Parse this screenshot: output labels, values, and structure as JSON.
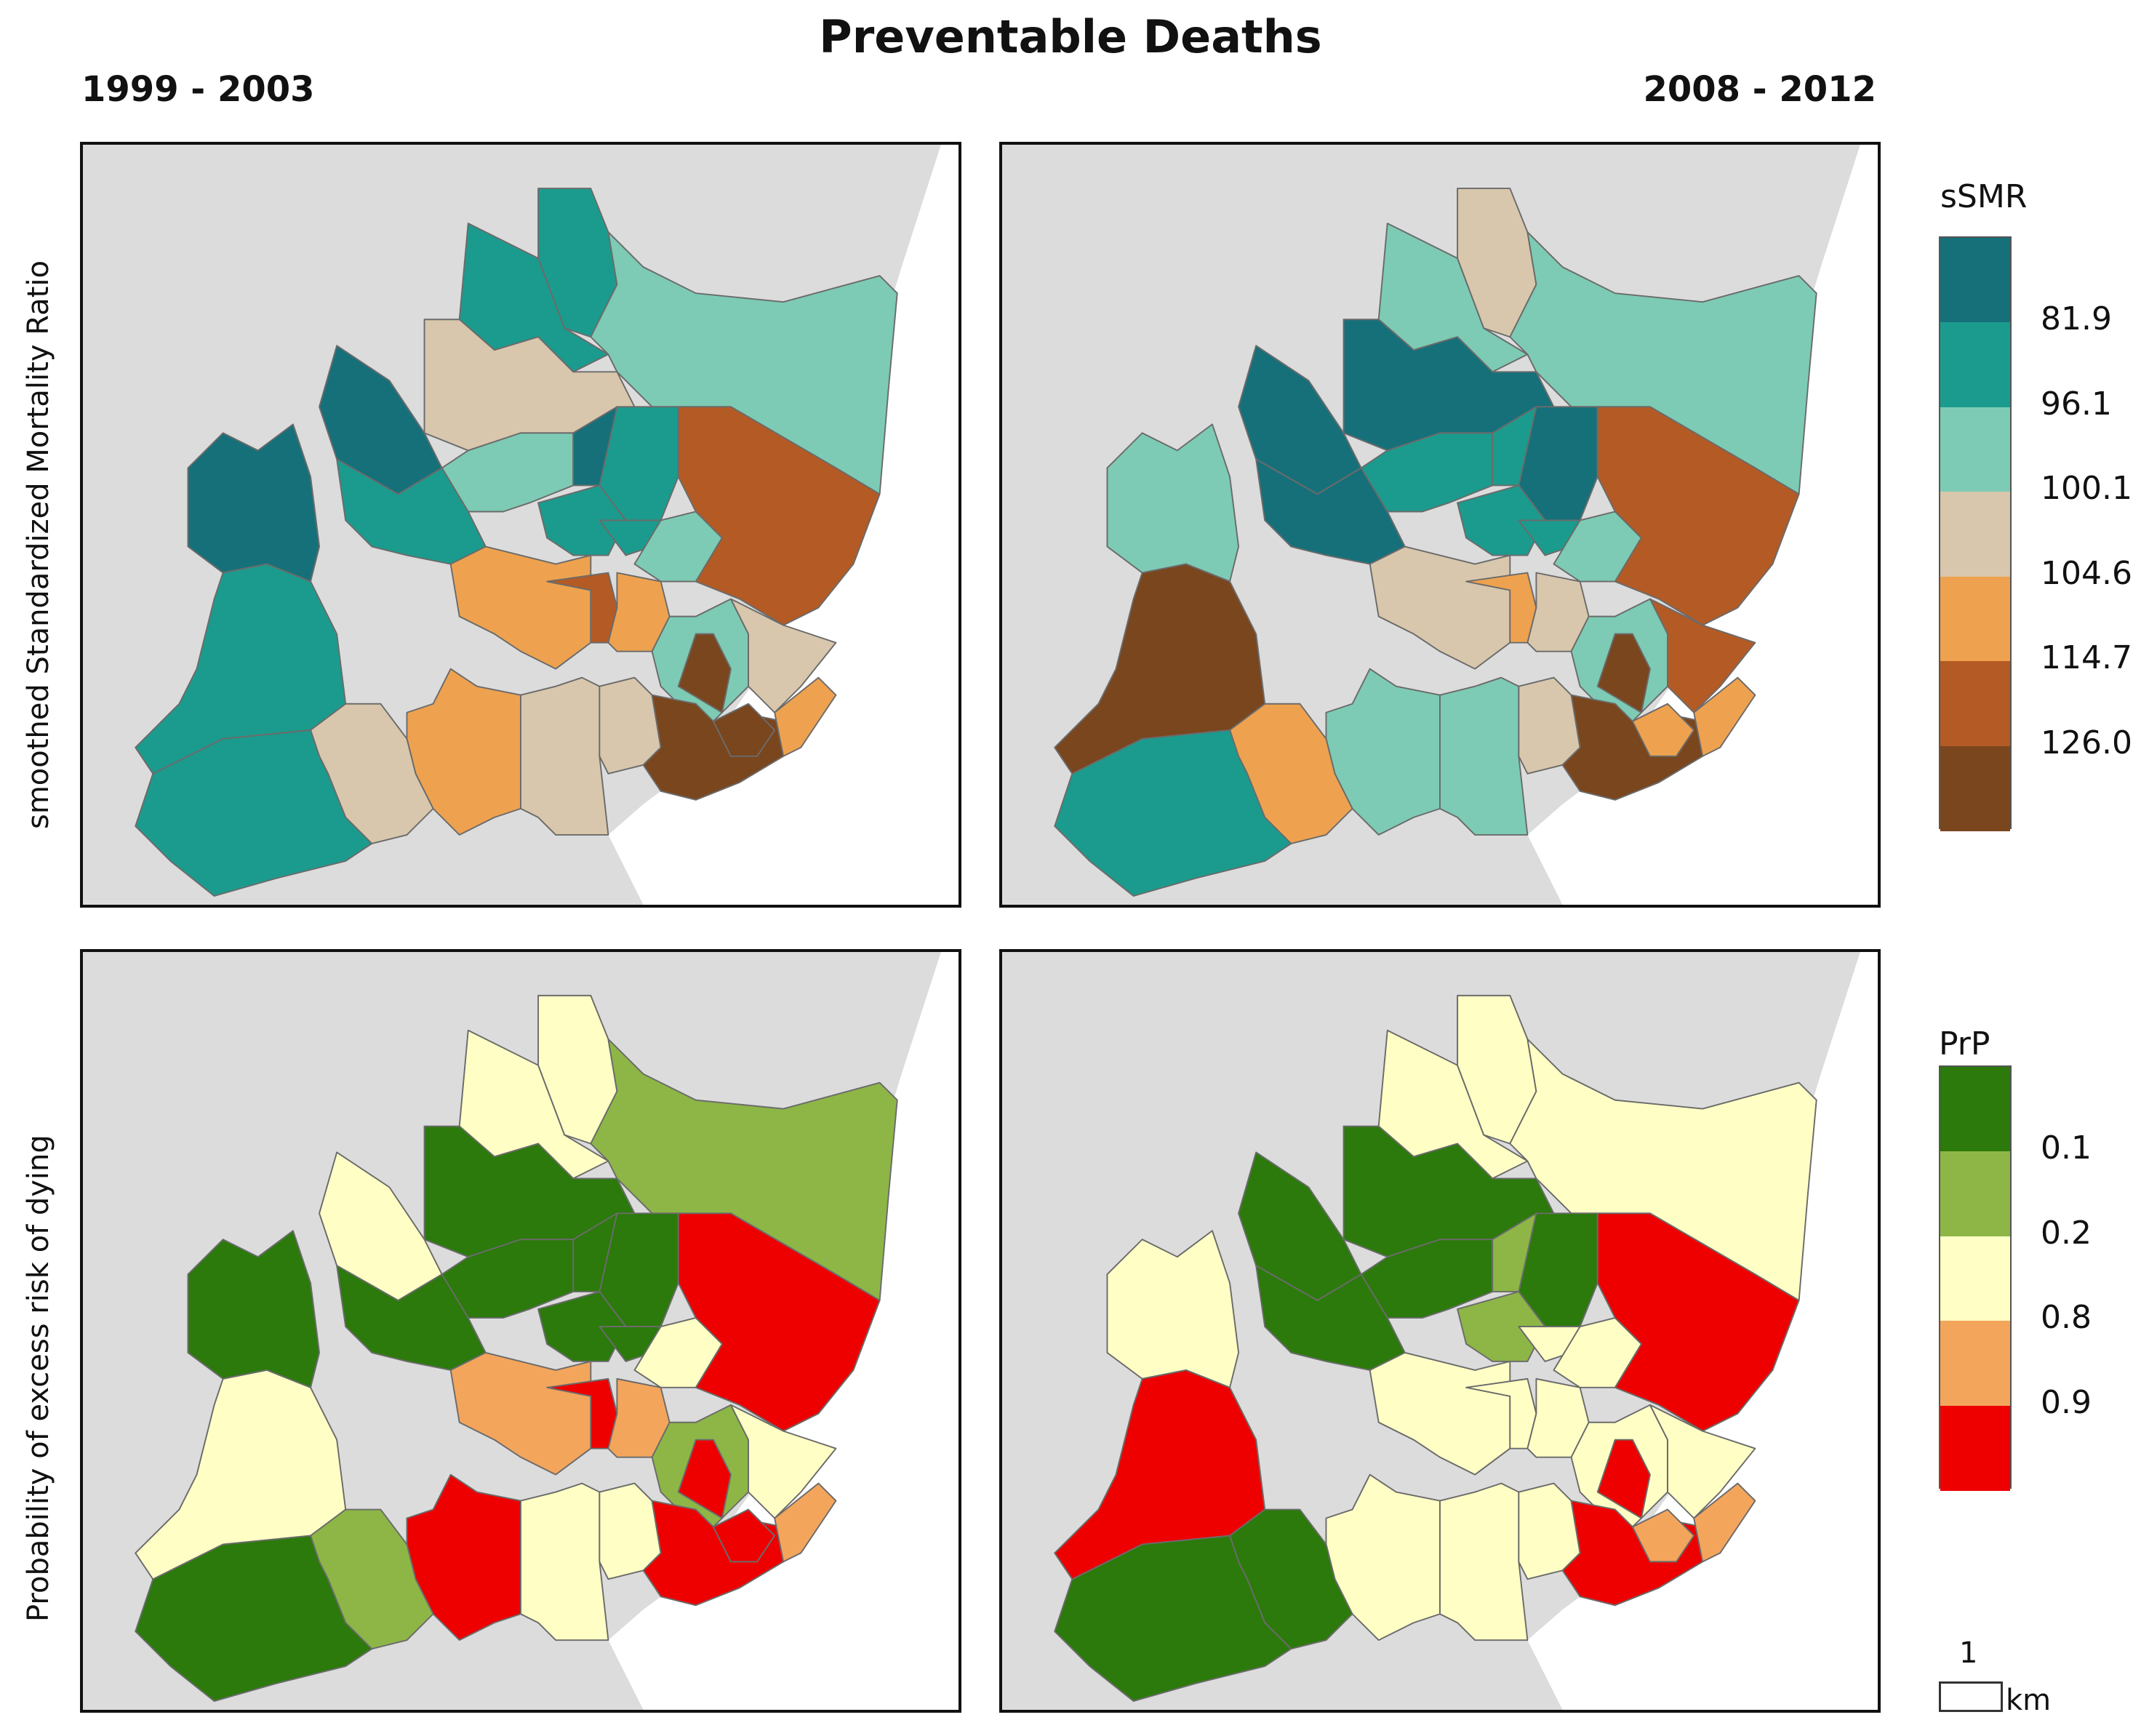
{
  "title": "Preventable Deaths",
  "periods": [
    "1999 - 2003",
    "2008 - 2012"
  ],
  "row_labels": [
    "smoothed Standardized Mortality Ratio",
    "Probability of excess risk of dying"
  ],
  "colors": {
    "land": "#dcdcdc",
    "border": "#6b6b6b",
    "ssmr": [
      "#16707a",
      "#1b9b8d",
      "#7dcbb4",
      "#d8c7ac",
      "#eea24f",
      "#b45a24",
      "#7a461e"
    ],
    "prp": [
      "#2b7a0b",
      "#8db646",
      "#ffffc5",
      "#f4a55c",
      "#ee0000"
    ]
  },
  "legend_ssmr": {
    "title": "sSMR",
    "breaks": [
      "81.9",
      "96.1",
      "100.1",
      "104.6",
      "114.7",
      "126.0"
    ]
  },
  "legend_prp": {
    "title": "PrP",
    "breaks": [
      "0.1",
      "0.2",
      "0.8",
      "0.9"
    ]
  },
  "scale_bar": {
    "value": "1",
    "unit": "km"
  },
  "maps": [
    {
      "name": "map-ssmr-1999-2003",
      "palette": "ssmr",
      "regions": [
        1,
        1,
        2,
        3,
        0,
        2,
        1,
        0,
        1,
        0,
        1,
        1,
        2,
        5,
        4,
        5,
        4,
        2,
        3,
        6,
        4,
        3,
        3,
        6,
        6,
        4,
        3,
        1,
        1
      ]
    },
    {
      "name": "map-ssmr-2008-2012",
      "palette": "ssmr",
      "regions": [
        2,
        3,
        2,
        0,
        0,
        1,
        0,
        2,
        0,
        1,
        1,
        1,
        2,
        5,
        3,
        4,
        3,
        2,
        5,
        6,
        2,
        2,
        3,
        6,
        4,
        4,
        4,
        1,
        6
      ]
    },
    {
      "name": "map-prp-1999-2003",
      "palette": "prp",
      "regions": [
        2,
        2,
        1,
        0,
        2,
        0,
        0,
        0,
        0,
        0,
        0,
        0,
        2,
        4,
        3,
        4,
        3,
        1,
        2,
        4,
        4,
        2,
        2,
        4,
        4,
        3,
        1,
        0,
        2
      ]
    },
    {
      "name": "map-prp-2008-2012",
      "palette": "prp",
      "regions": [
        2,
        2,
        2,
        0,
        0,
        0,
        0,
        2,
        0,
        1,
        1,
        2,
        2,
        4,
        2,
        2,
        2,
        2,
        2,
        4,
        2,
        2,
        2,
        4,
        3,
        3,
        0,
        0,
        4
      ]
    }
  ]
}
